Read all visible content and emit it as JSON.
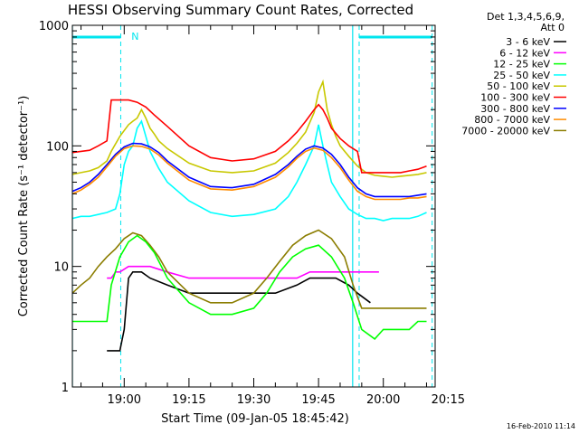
{
  "chart_data": {
    "type": "line",
    "title": "HESSI Observing Summary Count Rates, Corrected",
    "xlabel": "Start Time (09-Jan-05 18:45:42)",
    "ylabel": "Corrected Count Rate (s⁻¹ detector⁻¹)",
    "yscale": "log",
    "ylim": [
      1,
      1000
    ],
    "xlim_minutes": [
      18.0,
      102.0
    ],
    "x_ticks": [
      {
        "label": "19:00",
        "minute": 30
      },
      {
        "label": "19:15",
        "minute": 45
      },
      {
        "label": "19:30",
        "minute": 60
      },
      {
        "label": "19:45",
        "minute": 75
      },
      {
        "label": "20:00",
        "minute": 90
      },
      {
        "label": "20:15",
        "minute": 105
      }
    ],
    "y_ticks": [
      {
        "label": "1",
        "value": 1
      },
      {
        "label": "10",
        "value": 10
      },
      {
        "label": "100",
        "value": 100
      },
      {
        "label": "1000",
        "value": 1000
      }
    ],
    "legend_header": [
      "Det 1,3,4,5,6,9,",
      "Att 0"
    ],
    "legend_placement": "right",
    "markers": {
      "dashed_lines_minute": [
        29.2,
        84.4,
        101.3
      ],
      "solid_lines_minute": [
        18.0,
        82.9
      ],
      "top_bars": [
        [
          18.0,
          29.2
        ],
        [
          84.4,
          101.3
        ]
      ],
      "bar_label": "N",
      "bar_label_minute": 30.0
    },
    "series": [
      {
        "name": "3 - 6 keV",
        "color": "#000000",
        "x": [
          26,
          27,
          28,
          29,
          30,
          31,
          32,
          34,
          36,
          40,
          45,
          50,
          55,
          60,
          65,
          70,
          73,
          76,
          79,
          82,
          84,
          87
        ],
        "y": [
          2,
          2,
          2,
          2,
          3,
          8,
          9,
          9,
          8,
          7,
          6,
          6,
          6,
          6,
          6,
          7,
          8,
          8,
          8,
          7,
          6,
          5
        ]
      },
      {
        "name": "6 - 12 keV",
        "color": "#ff00ff",
        "x": [
          26,
          27,
          28,
          29,
          31,
          33,
          36,
          40,
          45,
          50,
          55,
          60,
          65,
          70,
          73,
          76,
          79,
          83,
          87,
          89
        ],
        "y": [
          8,
          8,
          9,
          9,
          10,
          10,
          10,
          9,
          8,
          8,
          8,
          8,
          8,
          8,
          9,
          9,
          9,
          9,
          9,
          9
        ]
      },
      {
        "name": "12 - 25 keV",
        "color": "#00ff00",
        "x": [
          18,
          20,
          22,
          24,
          26,
          27,
          29,
          31,
          33,
          35,
          37,
          40,
          45,
          50,
          55,
          60,
          63,
          66,
          69,
          72,
          75,
          78,
          81,
          83,
          85,
          88,
          90,
          92,
          94,
          96,
          98,
          100
        ],
        "y": [
          3.5,
          3.5,
          3.5,
          3.5,
          3.5,
          7,
          12,
          16,
          18,
          16,
          13,
          8,
          5,
          4,
          4,
          4.5,
          6,
          9,
          12,
          14,
          15,
          12,
          8,
          5,
          3,
          2.5,
          3,
          3,
          3,
          3,
          3.5,
          3.5
        ]
      },
      {
        "name": "25 - 50 keV",
        "color": "#00ffff",
        "x": [
          18,
          20,
          22,
          24,
          26,
          28,
          29,
          30,
          31,
          32,
          33,
          34,
          35,
          36,
          38,
          40,
          45,
          50,
          55,
          60,
          65,
          68,
          70,
          72,
          74,
          75,
          76,
          77,
          78,
          80,
          82,
          84,
          86,
          88,
          90,
          92,
          94,
          96,
          98,
          100
        ],
        "y": [
          25,
          26,
          26,
          27,
          28,
          30,
          40,
          70,
          90,
          100,
          140,
          160,
          120,
          90,
          65,
          50,
          35,
          28,
          26,
          27,
          30,
          38,
          50,
          70,
          100,
          150,
          100,
          70,
          50,
          38,
          30,
          27,
          25,
          25,
          24,
          25,
          25,
          25,
          26,
          28
        ]
      },
      {
        "name": "50 - 100 keV",
        "color": "#c8c800",
        "x": [
          18,
          20,
          22,
          24,
          26,
          27,
          29,
          31,
          32,
          33,
          34,
          35,
          36,
          37,
          38,
          40,
          45,
          50,
          55,
          60,
          65,
          68,
          70,
          72,
          74,
          75,
          76,
          77,
          78,
          79,
          80,
          82,
          84,
          86,
          88,
          90,
          92,
          94,
          96,
          98,
          100
        ],
        "y": [
          58,
          60,
          62,
          66,
          75,
          90,
          120,
          150,
          160,
          170,
          200,
          170,
          140,
          125,
          110,
          95,
          72,
          62,
          60,
          62,
          72,
          88,
          105,
          130,
          190,
          280,
          340,
          200,
          150,
          120,
          100,
          82,
          68,
          60,
          57,
          56,
          55,
          56,
          57,
          58,
          60
        ]
      },
      {
        "name": "100 - 300 keV",
        "color": "#ff0000",
        "x": [
          18,
          20,
          22,
          24,
          26,
          27,
          29,
          31,
          33,
          35,
          37,
          40,
          45,
          50,
          55,
          60,
          65,
          68,
          70,
          72,
          74,
          75,
          76,
          77,
          78,
          80,
          82,
          84,
          85,
          86,
          88,
          90,
          92,
          94,
          96,
          98,
          100
        ],
        "y": [
          88,
          90,
          92,
          100,
          110,
          240,
          240,
          240,
          230,
          210,
          180,
          145,
          100,
          80,
          75,
          78,
          90,
          110,
          130,
          160,
          200,
          220,
          200,
          170,
          140,
          115,
          100,
          90,
          60,
          60,
          60,
          60,
          60,
          60,
          62,
          64,
          68
        ]
      },
      {
        "name": "300 - 800 keV",
        "color": "#0000ff",
        "x": [
          18,
          20,
          22,
          24,
          26,
          28,
          30,
          32,
          34,
          36,
          38,
          40,
          45,
          50,
          55,
          60,
          65,
          68,
          70,
          72,
          74,
          76,
          78,
          80,
          82,
          84,
          86,
          88,
          90,
          92,
          94,
          96,
          98,
          100
        ],
        "y": [
          42,
          45,
          50,
          58,
          70,
          85,
          98,
          105,
          104,
          98,
          88,
          75,
          55,
          46,
          45,
          48,
          58,
          70,
          82,
          94,
          100,
          96,
          85,
          70,
          55,
          45,
          40,
          38,
          38,
          38,
          38,
          38,
          39,
          40
        ]
      },
      {
        "name": "800 - 7000 keV",
        "color": "#ff8c00",
        "x": [
          18,
          20,
          22,
          24,
          26,
          28,
          30,
          32,
          34,
          36,
          38,
          40,
          45,
          50,
          55,
          60,
          65,
          68,
          70,
          72,
          74,
          76,
          78,
          80,
          82,
          84,
          86,
          88,
          90,
          92,
          94,
          96,
          98,
          100
        ],
        "y": [
          40,
          43,
          48,
          55,
          67,
          82,
          95,
          100,
          99,
          94,
          84,
          72,
          52,
          44,
          43,
          46,
          55,
          67,
          79,
          90,
          96,
          92,
          80,
          66,
          52,
          42,
          38,
          36,
          36,
          36,
          36,
          37,
          37,
          38
        ]
      },
      {
        "name": "7000 - 20000 keV",
        "color": "#8b7d00",
        "x": [
          18,
          20,
          22,
          24,
          26,
          28,
          30,
          32,
          34,
          36,
          38,
          40,
          45,
          50,
          55,
          60,
          63,
          66,
          69,
          72,
          75,
          78,
          81,
          83,
          85,
          88,
          90,
          92,
          94,
          96,
          98,
          100
        ],
        "y": [
          6,
          7,
          8,
          10,
          12,
          14,
          17,
          19,
          18,
          15,
          12,
          9,
          6,
          5,
          5,
          6,
          8,
          11,
          15,
          18,
          20,
          17,
          12,
          7,
          4.5,
          4.5,
          4.5,
          4.5,
          4.5,
          4.5,
          4.5,
          4.5
        ]
      }
    ]
  },
  "footer_timestamp": "16-Feb-2010 11:14"
}
